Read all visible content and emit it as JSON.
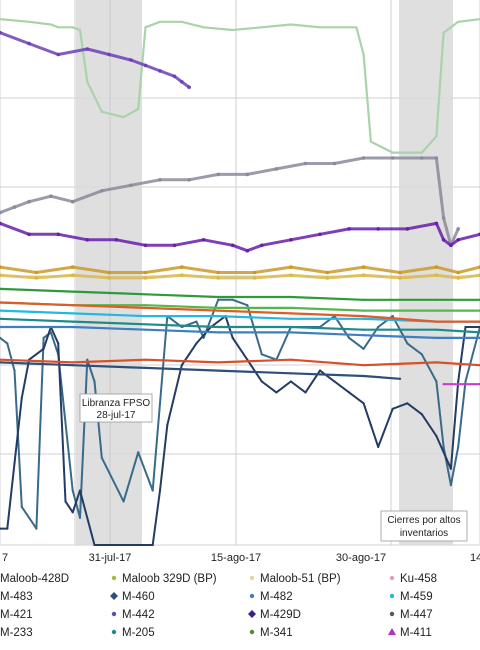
{
  "chart_data": {
    "type": "line",
    "title": "",
    "xlabel": "",
    "ylabel": "",
    "x_ticks": [
      "7",
      "31-jul-17",
      "15-ago-17",
      "30-ago-17",
      "14-"
    ],
    "grid": true,
    "legend_placement": "bottom",
    "shaded_periods": [
      {
        "label": "Libranza FPSO",
        "sublabel": "28-jul-17"
      },
      {
        "label": "Cierres por altos",
        "sublabel": "inventarios"
      }
    ],
    "legend": [
      {
        "name": "Maloob-428D",
        "color": "#6b7ab2",
        "marker": "line"
      },
      {
        "name": "Maloob 329D (BP)",
        "color": "#a8b830",
        "marker": "dot"
      },
      {
        "name": "Maloob-51 (BP)",
        "color": "#e8d39a",
        "marker": "dot"
      },
      {
        "name": "Ku-458",
        "color": "#e79ac2",
        "marker": "dot"
      },
      {
        "name": "M-483",
        "color": "#355a8a",
        "marker": "line"
      },
      {
        "name": "M-460",
        "color": "#2d4f7a",
        "marker": "diamond"
      },
      {
        "name": "M-482",
        "color": "#3f7fc0",
        "marker": "dot"
      },
      {
        "name": "M-459",
        "color": "#22b8e0",
        "marker": "dot"
      },
      {
        "name": "M-421",
        "color": "#3a6fb0",
        "marker": "line"
      },
      {
        "name": "M-442",
        "color": "#5a4fa0",
        "marker": "dot"
      },
      {
        "name": "M-429D",
        "color": "#3a1f8a",
        "marker": "diamond"
      },
      {
        "name": "M-447",
        "color": "#555555",
        "marker": "dot"
      },
      {
        "name": "M-233",
        "color": "#3aa055",
        "marker": "line"
      },
      {
        "name": "M-205",
        "color": "#1f8a8a",
        "marker": "dot"
      },
      {
        "name": "M-341",
        "color": "#5a8a1f",
        "marker": "dot"
      },
      {
        "name": "M-411",
        "color": "#b030c0",
        "marker": "tri"
      }
    ],
    "series": [
      {
        "key": "green_light",
        "color": "#a9d3ab",
        "values": [
          [
            0,
            0.035
          ],
          [
            4,
            0.04
          ],
          [
            7,
            0.045
          ],
          [
            8,
            0.05
          ],
          [
            10,
            0.05
          ],
          [
            11,
            0.055
          ],
          [
            12,
            0.15
          ],
          [
            14,
            0.205
          ],
          [
            17,
            0.215
          ],
          [
            19,
            0.2
          ],
          [
            20,
            0.05
          ],
          [
            22,
            0.04
          ],
          [
            25,
            0.04
          ],
          [
            28,
            0.05
          ],
          [
            32,
            0.055
          ],
          [
            36,
            0.05
          ],
          [
            40,
            0.045
          ],
          [
            44,
            0.05
          ],
          [
            47,
            0.05
          ],
          [
            49,
            0.05
          ],
          [
            50,
            0.1
          ],
          [
            51,
            0.26
          ],
          [
            54,
            0.28
          ],
          [
            58,
            0.28
          ],
          [
            60,
            0.25
          ],
          [
            61,
            0.06
          ],
          [
            63,
            0.04
          ],
          [
            66,
            0.035
          ]
        ]
      },
      {
        "key": "slate_line",
        "color": "#3a6a8a",
        "values": [
          [
            0,
            0.62
          ],
          [
            1,
            0.63
          ],
          [
            2,
            0.68
          ],
          [
            3,
            0.93
          ],
          [
            5,
            0.97
          ],
          [
            6,
            0.62
          ],
          [
            7,
            0.61
          ],
          [
            8,
            0.65
          ],
          [
            10,
            0.9
          ],
          [
            11,
            0.95
          ],
          [
            12,
            0.66
          ],
          [
            13,
            0.7
          ],
          [
            14,
            0.84
          ],
          [
            17,
            0.92
          ],
          [
            19,
            0.83
          ],
          [
            21,
            0.9
          ],
          [
            23,
            0.58
          ],
          [
            25,
            0.6
          ],
          [
            27,
            0.59
          ],
          [
            28,
            0.62
          ],
          [
            30,
            0.55
          ],
          [
            32,
            0.55
          ],
          [
            34,
            0.56
          ],
          [
            36,
            0.65
          ],
          [
            38,
            0.66
          ],
          [
            40,
            0.6
          ],
          [
            42,
            0.6
          ],
          [
            44,
            0.6
          ],
          [
            46,
            0.58
          ],
          [
            48,
            0.62
          ],
          [
            50,
            0.64
          ],
          [
            52,
            0.6
          ],
          [
            54,
            0.58
          ],
          [
            56,
            0.63
          ],
          [
            58,
            0.65
          ],
          [
            60,
            0.7
          ],
          [
            61,
            0.82
          ],
          [
            62,
            0.89
          ],
          [
            63,
            0.82
          ],
          [
            64,
            0.7
          ],
          [
            66,
            0.6
          ]
        ]
      },
      {
        "key": "navy_line",
        "color": "#243b64",
        "values": [
          [
            0,
            0.97
          ],
          [
            1,
            0.97
          ],
          [
            2,
            0.85
          ],
          [
            3,
            0.73
          ],
          [
            4,
            0.66
          ],
          [
            6,
            0.64
          ],
          [
            7,
            0.6
          ],
          [
            8,
            0.63
          ],
          [
            9,
            0.92
          ],
          [
            10,
            0.94
          ],
          [
            11,
            0.9
          ],
          [
            13,
            1.0
          ],
          [
            15,
            1.0
          ],
          [
            19,
            1.0
          ],
          [
            21,
            1.0
          ],
          [
            22,
            0.9
          ],
          [
            23,
            0.78
          ],
          [
            25,
            0.67
          ],
          [
            26,
            0.65
          ],
          [
            27,
            0.63
          ],
          [
            29,
            0.6
          ],
          [
            31,
            0.58
          ],
          [
            32,
            0.62
          ],
          [
            34,
            0.66
          ],
          [
            36,
            0.7
          ],
          [
            38,
            0.72
          ],
          [
            40,
            0.7
          ],
          [
            42,
            0.72
          ],
          [
            44,
            0.68
          ],
          [
            46,
            0.7
          ],
          [
            48,
            0.72
          ],
          [
            50,
            0.74
          ],
          [
            51,
            0.78
          ],
          [
            52,
            0.82
          ],
          [
            54,
            0.75
          ],
          [
            56,
            0.74
          ],
          [
            58,
            0.76
          ],
          [
            60,
            0.8
          ],
          [
            62,
            0.86
          ],
          [
            63,
            0.7
          ],
          [
            64,
            0.6
          ],
          [
            66,
            0.6
          ]
        ]
      },
      {
        "key": "purple_top",
        "color": "#6a3fb8",
        "values": [
          [
            0,
            0.06
          ],
          [
            4,
            0.08
          ],
          [
            8,
            0.1
          ],
          [
            12,
            0.09
          ],
          [
            15,
            0.1
          ],
          [
            18,
            0.11
          ],
          [
            20,
            0.12
          ],
          [
            22,
            0.13
          ],
          [
            24,
            0.14
          ],
          [
            25,
            0.15
          ],
          [
            26,
            0.16
          ]
        ]
      },
      {
        "key": "gray_rising",
        "color": "#8a8a9a",
        "values": [
          [
            0,
            0.39
          ],
          [
            2,
            0.38
          ],
          [
            4,
            0.37
          ],
          [
            7,
            0.36
          ],
          [
            10,
            0.37
          ],
          [
            14,
            0.35
          ],
          [
            18,
            0.34
          ],
          [
            22,
            0.33
          ],
          [
            26,
            0.33
          ],
          [
            30,
            0.32
          ],
          [
            34,
            0.32
          ],
          [
            38,
            0.31
          ],
          [
            42,
            0.3
          ],
          [
            46,
            0.3
          ],
          [
            50,
            0.29
          ],
          [
            54,
            0.29
          ],
          [
            58,
            0.29
          ],
          [
            60,
            0.29
          ],
          [
            61,
            0.4
          ],
          [
            62,
            0.45
          ],
          [
            63,
            0.42
          ]
        ]
      },
      {
        "key": "purple_mid",
        "color": "#6a1fa8",
        "values": [
          [
            0,
            0.41
          ],
          [
            4,
            0.43
          ],
          [
            8,
            0.43
          ],
          [
            12,
            0.44
          ],
          [
            16,
            0.44
          ],
          [
            20,
            0.45
          ],
          [
            24,
            0.45
          ],
          [
            28,
            0.44
          ],
          [
            32,
            0.45
          ],
          [
            34,
            0.46
          ],
          [
            36,
            0.45
          ],
          [
            40,
            0.44
          ],
          [
            44,
            0.43
          ],
          [
            48,
            0.42
          ],
          [
            52,
            0.42
          ],
          [
            56,
            0.42
          ],
          [
            60,
            0.41
          ],
          [
            61,
            0.44
          ],
          [
            62,
            0.45
          ],
          [
            63,
            0.44
          ],
          [
            66,
            0.43
          ]
        ]
      },
      {
        "key": "gold_band",
        "color": "#c99a2a",
        "values": [
          [
            0,
            0.49
          ],
          [
            5,
            0.5
          ],
          [
            10,
            0.49
          ],
          [
            15,
            0.5
          ],
          [
            20,
            0.5
          ],
          [
            25,
            0.49
          ],
          [
            30,
            0.5
          ],
          [
            35,
            0.5
          ],
          [
            40,
            0.49
          ],
          [
            45,
            0.5
          ],
          [
            50,
            0.49
          ],
          [
            55,
            0.5
          ],
          [
            60,
            0.49
          ],
          [
            63,
            0.5
          ],
          [
            66,
            0.49
          ]
        ]
      },
      {
        "key": "gold_band_2",
        "color": "#d9b84a",
        "values": [
          [
            0,
            0.505
          ],
          [
            5,
            0.51
          ],
          [
            10,
            0.505
          ],
          [
            15,
            0.51
          ],
          [
            20,
            0.51
          ],
          [
            25,
            0.505
          ],
          [
            30,
            0.51
          ],
          [
            35,
            0.51
          ],
          [
            40,
            0.505
          ],
          [
            45,
            0.51
          ],
          [
            50,
            0.505
          ],
          [
            55,
            0.51
          ],
          [
            60,
            0.505
          ],
          [
            63,
            0.51
          ],
          [
            66,
            0.505
          ]
        ]
      },
      {
        "key": "green_1",
        "color": "#2e9a3a",
        "values": [
          [
            0,
            0.53
          ],
          [
            10,
            0.535
          ],
          [
            20,
            0.54
          ],
          [
            30,
            0.545
          ],
          [
            40,
            0.545
          ],
          [
            50,
            0.55
          ],
          [
            60,
            0.55
          ],
          [
            66,
            0.55
          ]
        ]
      },
      {
        "key": "green_2",
        "color": "#55b84a",
        "values": [
          [
            0,
            0.555
          ],
          [
            10,
            0.56
          ],
          [
            20,
            0.56
          ],
          [
            30,
            0.565
          ],
          [
            40,
            0.565
          ],
          [
            50,
            0.57
          ],
          [
            60,
            0.57
          ],
          [
            66,
            0.57
          ]
        ]
      },
      {
        "key": "cyan_1",
        "color": "#22b8e0",
        "values": [
          [
            0,
            0.57
          ],
          [
            10,
            0.575
          ],
          [
            20,
            0.58
          ],
          [
            30,
            0.58
          ],
          [
            40,
            0.585
          ],
          [
            50,
            0.585
          ],
          [
            60,
            0.59
          ],
          [
            66,
            0.59
          ]
        ]
      },
      {
        "key": "teal_1",
        "color": "#1f8a8a",
        "values": [
          [
            0,
            0.585
          ],
          [
            10,
            0.59
          ],
          [
            20,
            0.595
          ],
          [
            30,
            0.6
          ],
          [
            40,
            0.6
          ],
          [
            50,
            0.605
          ],
          [
            60,
            0.605
          ],
          [
            66,
            0.61
          ]
        ]
      },
      {
        "key": "blue_1",
        "color": "#3f7fc0",
        "values": [
          [
            0,
            0.6
          ],
          [
            10,
            0.6
          ],
          [
            20,
            0.605
          ],
          [
            30,
            0.61
          ],
          [
            40,
            0.61
          ],
          [
            50,
            0.615
          ],
          [
            60,
            0.62
          ],
          [
            66,
            0.62
          ]
        ]
      },
      {
        "key": "orange_1",
        "color": "#e05a2a",
        "values": [
          [
            0,
            0.555
          ],
          [
            10,
            0.56
          ],
          [
            20,
            0.565
          ],
          [
            30,
            0.57
          ],
          [
            40,
            0.575
          ],
          [
            50,
            0.58
          ],
          [
            60,
            0.59
          ],
          [
            66,
            0.59
          ]
        ]
      },
      {
        "key": "red_low",
        "color": "#d8502a",
        "values": [
          [
            0,
            0.66
          ],
          [
            10,
            0.665
          ],
          [
            20,
            0.66
          ],
          [
            30,
            0.665
          ],
          [
            40,
            0.66
          ],
          [
            50,
            0.67
          ],
          [
            60,
            0.665
          ],
          [
            66,
            0.67
          ]
        ]
      },
      {
        "key": "navy_low",
        "color": "#2d4f7a",
        "values": [
          [
            0,
            0.665
          ],
          [
            10,
            0.67
          ],
          [
            20,
            0.675
          ],
          [
            30,
            0.68
          ],
          [
            40,
            0.685
          ],
          [
            50,
            0.69
          ],
          [
            55,
            0.695
          ]
        ]
      },
      {
        "key": "magenta_low",
        "color": "#c040d0",
        "values": [
          [
            61,
            0.705
          ],
          [
            62,
            0.705
          ],
          [
            63,
            0.705
          ],
          [
            64,
            0.705
          ],
          [
            66,
            0.705
          ]
        ]
      }
    ]
  },
  "annotations": {
    "shade1_label_1": "Libranza FPSO",
    "shade1_label_2": "28-jul-17",
    "shade2_label_1": "Cierres por altos",
    "shade2_label_2": "inventarios"
  }
}
